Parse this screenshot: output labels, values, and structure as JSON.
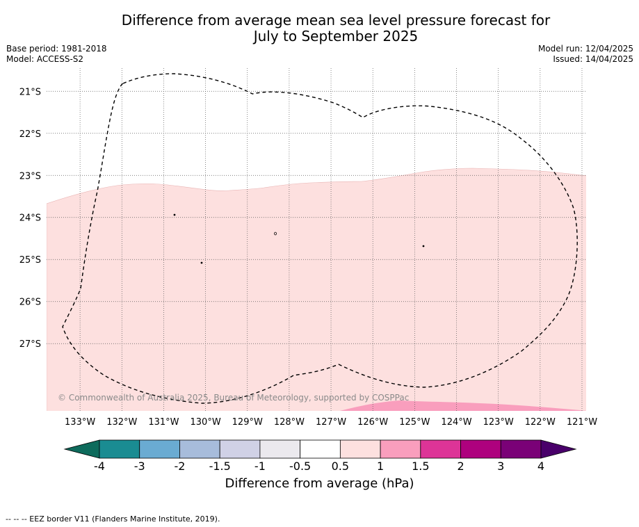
{
  "title": {
    "line1": "Difference from average mean sea level pressure forecast for",
    "line2": "July to September 2025"
  },
  "meta_left": {
    "base_period": "Base period: 1981-2018",
    "model": "Model: ACCESS-S2"
  },
  "meta_right": {
    "model_run": "Model run: 12/04/2025",
    "issued": "Issued: 14/04/2025"
  },
  "map": {
    "longitude_labels": [
      "133°W",
      "132°W",
      "131°W",
      "130°W",
      "129°W",
      "128°W",
      "127°W",
      "126°W",
      "125°W",
      "124°W",
      "123°W",
      "122°W",
      "121°W"
    ],
    "latitude_labels": [
      "21°S",
      "22°S",
      "23°S",
      "24°S",
      "25°S",
      "26°S",
      "27°S"
    ],
    "longitudes": [
      -133,
      -132,
      -131,
      -130,
      -129,
      -128,
      -127,
      -126,
      -125,
      -124,
      -123,
      -122,
      -121
    ],
    "latitudes": [
      -21,
      -22,
      -23,
      -24,
      -25,
      -26,
      -27
    ],
    "extent": {
      "lon_min": -133.8,
      "lon_max": -120.9,
      "lat_min": -28.6,
      "lat_max": -20.45
    },
    "credit": "© Commonwealth of Australia 2025, Bureau of Meteorology, supported by COSPPac",
    "fill_colors": {
      "band_0_5_to_1": "#fde0df",
      "band_1_to_1_5": "#f99ebd"
    },
    "eez_border_color": "#000000"
  },
  "colorbar": {
    "tick_labels": [
      "-4",
      "-3",
      "-2",
      "-1.5",
      "-1",
      "-0.5",
      "0.5",
      "1",
      "1.5",
      "2",
      "3",
      "4"
    ],
    "colors": [
      "#1a8c92",
      "#6aabd2",
      "#a7bcdb",
      "#d0d1e6",
      "#ebe9ee",
      "#ffffff",
      "#fde0df",
      "#f99ebd",
      "#dd3497",
      "#ae017e",
      "#7a0177"
    ],
    "under_color": "#0e6b5c",
    "over_color": "#49006a",
    "title": "Difference from average (hPa)"
  },
  "footnote": "-- -- -- EEZ border V11 (Flanders Marine Institute, 2019)."
}
